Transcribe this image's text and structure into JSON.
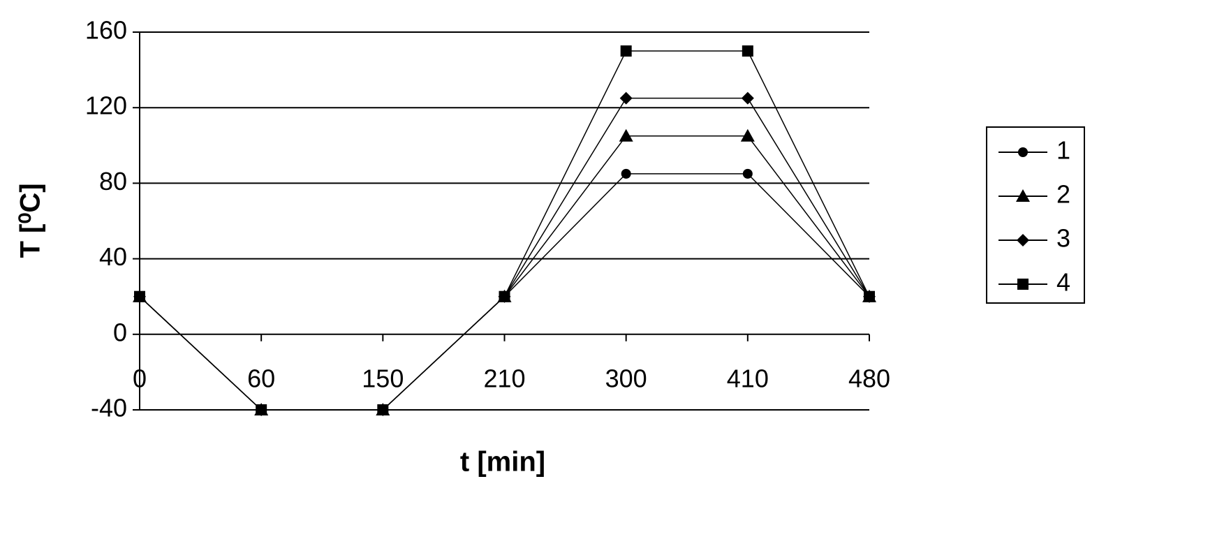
{
  "chart_data": {
    "type": "line",
    "x_label": "t [min]",
    "y_label": "T [⁰C]",
    "categories": [
      "0",
      "60",
      "150",
      "210",
      "300",
      "410",
      "480"
    ],
    "series": [
      {
        "name": "1",
        "color": "#000000",
        "marker": "circle",
        "values": [
          20,
          -40,
          -40,
          20,
          85,
          85,
          20
        ]
      },
      {
        "name": "2",
        "color": "#000000",
        "marker": "triangle",
        "values": [
          20,
          -40,
          -40,
          20,
          105,
          105,
          20
        ]
      },
      {
        "name": "3",
        "color": "#000000",
        "marker": "diamond",
        "values": [
          20,
          -40,
          -40,
          20,
          125,
          125,
          20
        ]
      },
      {
        "name": "4",
        "color": "#000000",
        "marker": "square",
        "values": [
          20,
          -40,
          -40,
          20,
          150,
          150,
          20
        ]
      }
    ],
    "ylim": [
      -40,
      160
    ],
    "yticks": [
      -40,
      0,
      40,
      80,
      120,
      160
    ],
    "grid": true,
    "legend": "right"
  }
}
